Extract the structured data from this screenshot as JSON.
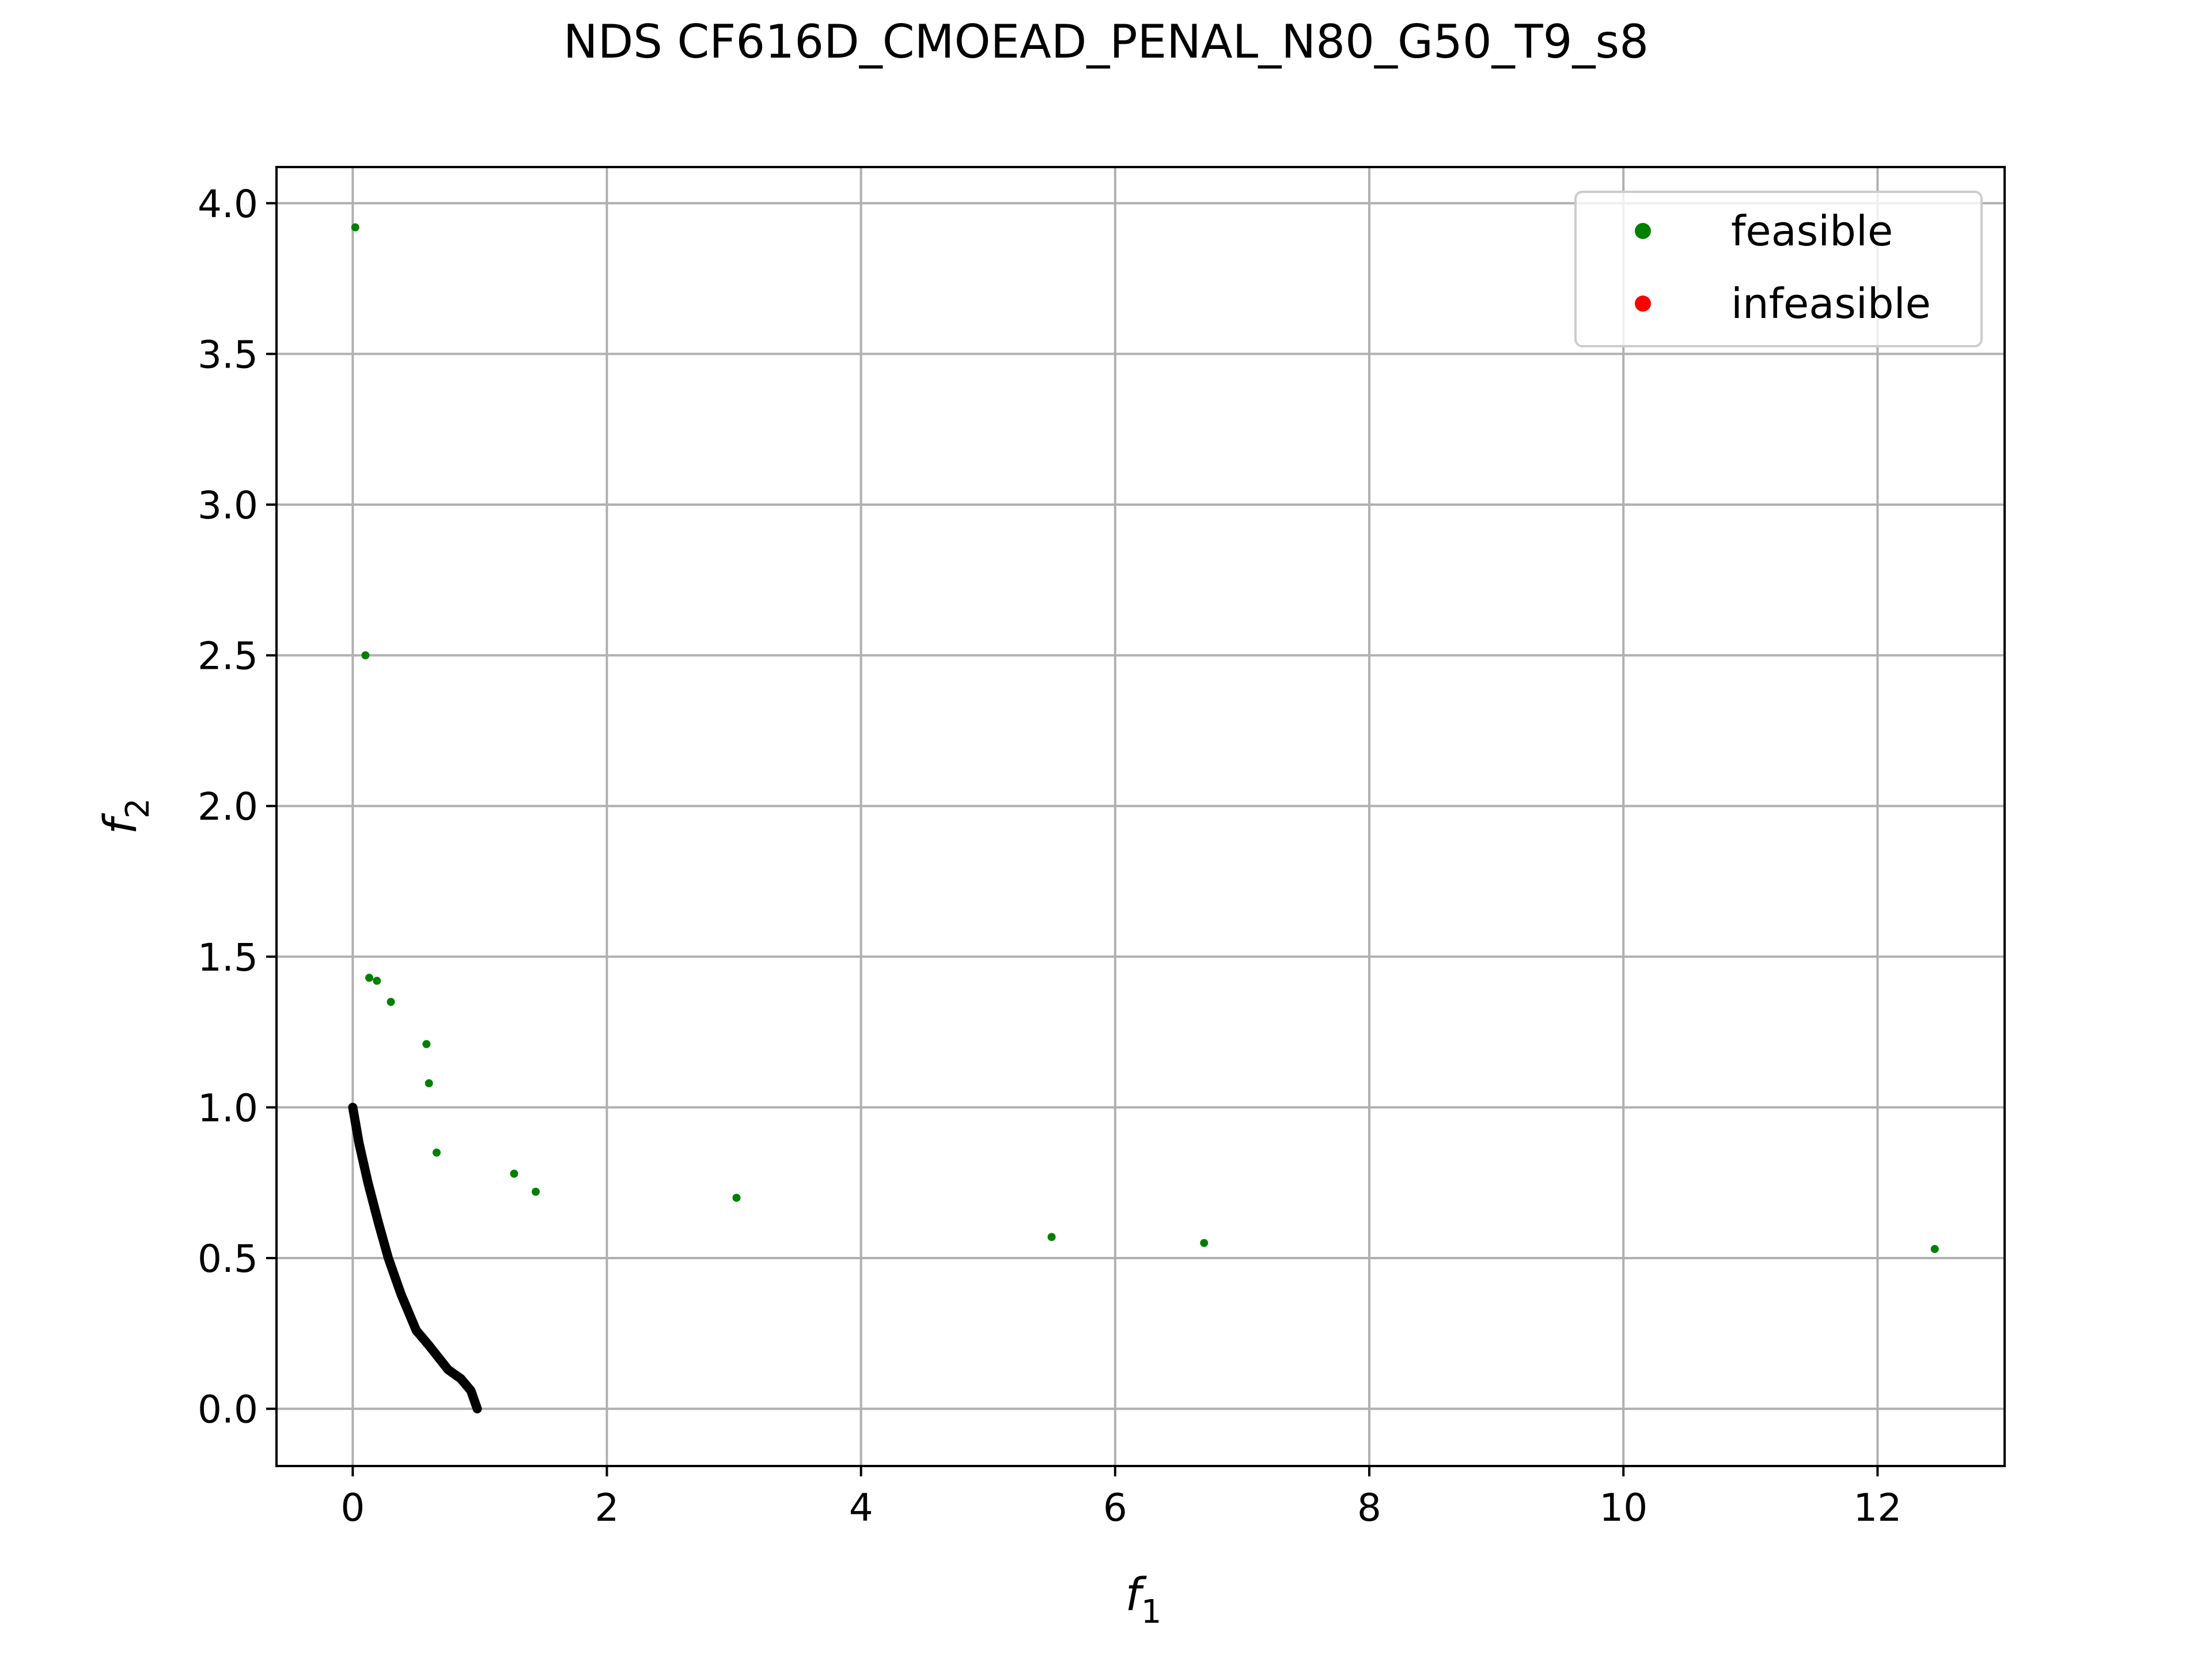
{
  "chart_data": {
    "type": "scatter",
    "title": "NDS CF616D_CMOEAD_PENAL_N80_G50_T9_s8",
    "xlabel": "f",
    "xlabel_sub": "1",
    "ylabel": "f",
    "ylabel_sub": "2",
    "xlim": [
      -0.6,
      13.0
    ],
    "ylim": [
      -0.19,
      4.12
    ],
    "xticks": [
      0,
      2,
      4,
      6,
      8,
      10,
      12
    ],
    "yticks": [
      0.0,
      0.5,
      1.0,
      1.5,
      2.0,
      2.5,
      3.0,
      3.5,
      4.0
    ],
    "grid": true,
    "legend_position": "top-right",
    "series": [
      {
        "name": "feasible",
        "color": "#008000",
        "points": [
          [
            0.02,
            3.92
          ],
          [
            0.1,
            2.5
          ],
          [
            0.13,
            1.43
          ],
          [
            0.19,
            1.42
          ],
          [
            0.3,
            1.35
          ],
          [
            0.58,
            1.21
          ],
          [
            0.6,
            1.08
          ],
          [
            0.66,
            0.85
          ],
          [
            1.27,
            0.78
          ],
          [
            1.44,
            0.72
          ],
          [
            3.02,
            0.7
          ],
          [
            5.5,
            0.57
          ],
          [
            6.7,
            0.55
          ],
          [
            12.45,
            0.53
          ]
        ]
      },
      {
        "name": "infeasible",
        "color": "#ff0000",
        "points": []
      }
    ],
    "pareto_front": {
      "color": "#000000",
      "points": [
        [
          0.0,
          1.0
        ],
        [
          0.05,
          0.88
        ],
        [
          0.12,
          0.75
        ],
        [
          0.2,
          0.62
        ],
        [
          0.28,
          0.5
        ],
        [
          0.38,
          0.38
        ],
        [
          0.5,
          0.26
        ],
        [
          0.6,
          0.21
        ],
        [
          0.75,
          0.13
        ],
        [
          0.85,
          0.1
        ],
        [
          0.93,
          0.06
        ],
        [
          0.98,
          0.0
        ]
      ]
    }
  }
}
